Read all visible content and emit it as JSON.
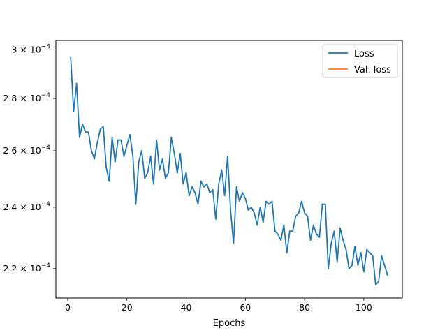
{
  "chart_data": {
    "type": "line",
    "xlabel": "Epochs",
    "ylabel": "",
    "yscale": "log",
    "xlim": [
      -4,
      113
    ],
    "ylim": [
      0.000211,
      0.000304
    ],
    "x_ticks": [
      0,
      20,
      40,
      60,
      80,
      100
    ],
    "x_tick_labels": [
      "0",
      "20",
      "40",
      "60",
      "80",
      "100"
    ],
    "y_ticks": [
      0.00022,
      0.00024,
      0.00026,
      0.00028,
      0.0003
    ],
    "y_tick_labels": [
      {
        "mantissa": "2.2",
        "base": "10",
        "exp": "−4"
      },
      {
        "mantissa": "2.4",
        "base": "10",
        "exp": "−4"
      },
      {
        "mantissa": "2.6",
        "base": "10",
        "exp": "−4"
      },
      {
        "mantissa": "2.8",
        "base": "10",
        "exp": "−4"
      },
      {
        "mantissa": "3",
        "base": "10",
        "exp": "−4"
      }
    ],
    "legend_position": "top-right",
    "grid": false,
    "series": [
      {
        "name": "Loss",
        "color": "#1f77b4",
        "x": [
          1,
          2,
          3,
          4,
          5,
          6,
          7,
          8,
          9,
          10,
          11,
          12,
          13,
          14,
          15,
          16,
          17,
          18,
          19,
          20,
          21,
          22,
          23,
          24,
          25,
          26,
          27,
          28,
          29,
          30,
          31,
          32,
          33,
          34,
          35,
          36,
          37,
          38,
          39,
          40,
          41,
          42,
          43,
          44,
          45,
          46,
          47,
          48,
          49,
          50,
          51,
          52,
          53,
          54,
          55,
          56,
          57,
          58,
          59,
          60,
          61,
          62,
          63,
          64,
          65,
          66,
          67,
          68,
          69,
          70,
          71,
          72,
          73,
          74,
          75,
          76,
          77,
          78,
          79,
          80,
          81,
          82,
          83,
          84,
          85,
          86,
          87,
          88,
          89,
          90,
          91,
          92,
          93,
          94,
          95,
          96,
          97,
          98,
          99,
          100,
          101,
          102,
          103,
          104,
          105,
          106,
          107,
          108
        ],
        "y": [
          0.000297,
          0.000275,
          0.000286,
          0.000265,
          0.00027,
          0.000267,
          0.000267,
          0.00026,
          0.000257,
          0.000263,
          0.000268,
          0.000269,
          0.000254,
          0.000249,
          0.000265,
          0.000256,
          0.000264,
          0.000264,
          0.000258,
          0.000262,
          0.000266,
          0.000258,
          0.000241,
          0.000256,
          0.00026,
          0.00025,
          0.000252,
          0.000258,
          0.000248,
          0.000264,
          0.000253,
          0.000257,
          0.00025,
          0.000252,
          0.000265,
          0.000259,
          0.000252,
          0.000259,
          0.000248,
          0.000252,
          0.000244,
          0.000247,
          0.000245,
          0.000241,
          0.000249,
          0.000247,
          0.000248,
          0.000245,
          0.000246,
          0.000236,
          0.000248,
          0.000253,
          0.000244,
          0.000258,
          0.000239,
          0.000228,
          0.000247,
          0.000242,
          0.000245,
          0.000243,
          0.000239,
          0.00024,
          0.000238,
          0.000234,
          0.00024,
          0.000235,
          0.000242,
          0.000241,
          0.000242,
          0.000232,
          0.000231,
          0.000229,
          0.000234,
          0.000225,
          0.000232,
          0.000232,
          0.000237,
          0.000238,
          0.000242,
          0.000238,
          0.000237,
          0.000229,
          0.000234,
          0.000231,
          0.00023,
          0.000241,
          0.000241,
          0.00022,
          0.000228,
          0.000232,
          0.000222,
          0.000233,
          0.000229,
          0.000226,
          0.00022,
          0.000221,
          0.000227,
          0.000221,
          0.000225,
          0.000219,
          0.000226,
          0.000225,
          0.000224,
          0.000215,
          0.000216,
          0.000224,
          0.000221,
          0.000218
        ]
      },
      {
        "name": "Val. loss",
        "color": "#ff7f0e",
        "x": [],
        "y": []
      }
    ]
  }
}
